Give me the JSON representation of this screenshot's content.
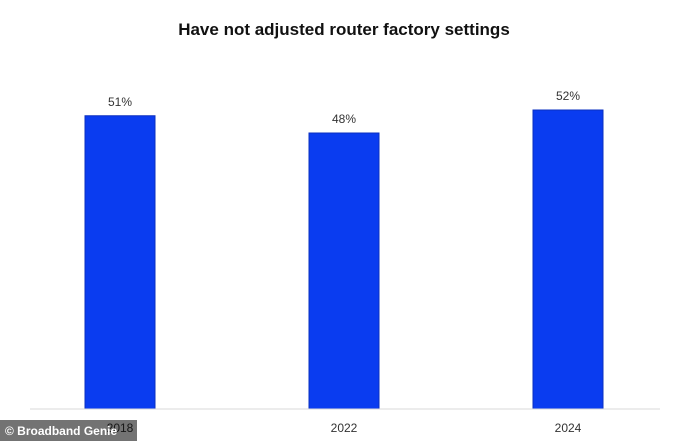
{
  "chart_data": {
    "type": "bar",
    "title": "Have not adjusted router factory settings",
    "categories": [
      "2018",
      "2022",
      "2024"
    ],
    "values": [
      51,
      48,
      52
    ],
    "value_labels": [
      "51%",
      "48%",
      "52%"
    ],
    "unit": "%",
    "ylim": [
      0,
      60
    ],
    "grid": false,
    "legend": "none",
    "bar_color": "#0a3cf0"
  },
  "watermark": {
    "text": "© Broadband Genie"
  }
}
